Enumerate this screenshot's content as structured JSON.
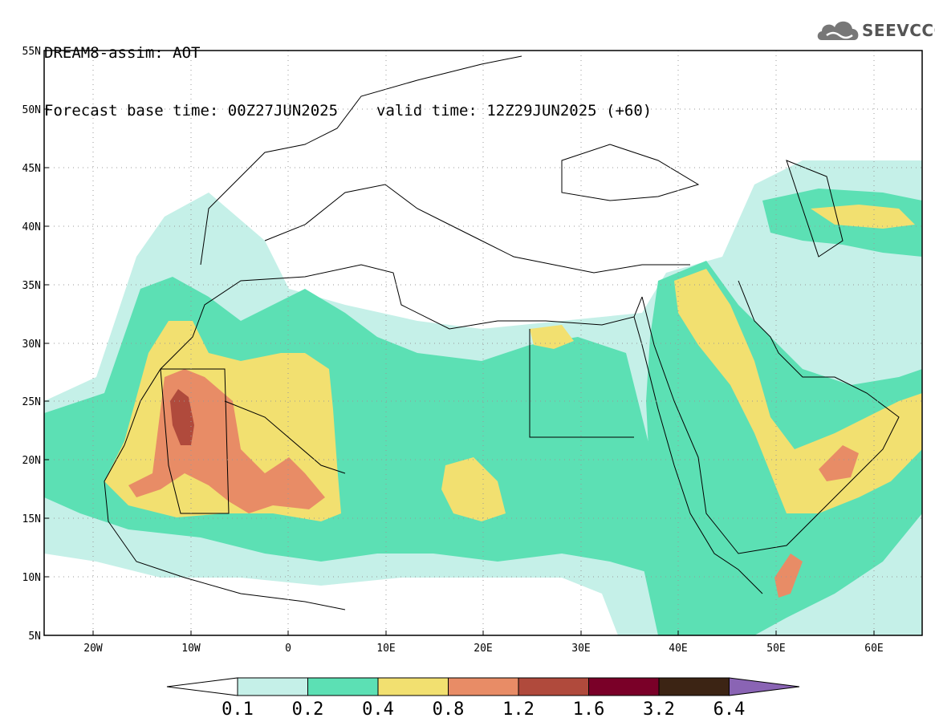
{
  "header": {
    "title": "DREAM8-assim: AOT",
    "base_time": "Forecast base time: 00Z27JUN2025",
    "valid_time": "valid time: 12Z29JUN2025 (+60)"
  },
  "logo": {
    "text": "SEEVCCC",
    "icon": "cloud-icon"
  },
  "map": {
    "lon_range": [
      -25,
      65
    ],
    "lat_range": [
      5,
      55
    ],
    "lat_ticks": [
      "55N",
      "50N",
      "45N",
      "40N",
      "35N",
      "30N",
      "25N",
      "20N",
      "15N",
      "10N",
      "5N"
    ],
    "lon_ticks": [
      "20W",
      "10W",
      "0",
      "10E",
      "20E",
      "30E",
      "40E",
      "50E",
      "60E"
    ],
    "grid": "dotted"
  },
  "colorbar": {
    "labels": [
      "0.1",
      "0.2",
      "0.4",
      "0.8",
      "1.2",
      "1.6",
      "3.2",
      "6.4"
    ],
    "colors": [
      "#ffffff",
      "#c5f0e8",
      "#5ce0b4",
      "#f2e070",
      "#e88c66",
      "#b04a3c",
      "#7a0028",
      "#3c2414",
      "#8a64b4"
    ]
  }
}
